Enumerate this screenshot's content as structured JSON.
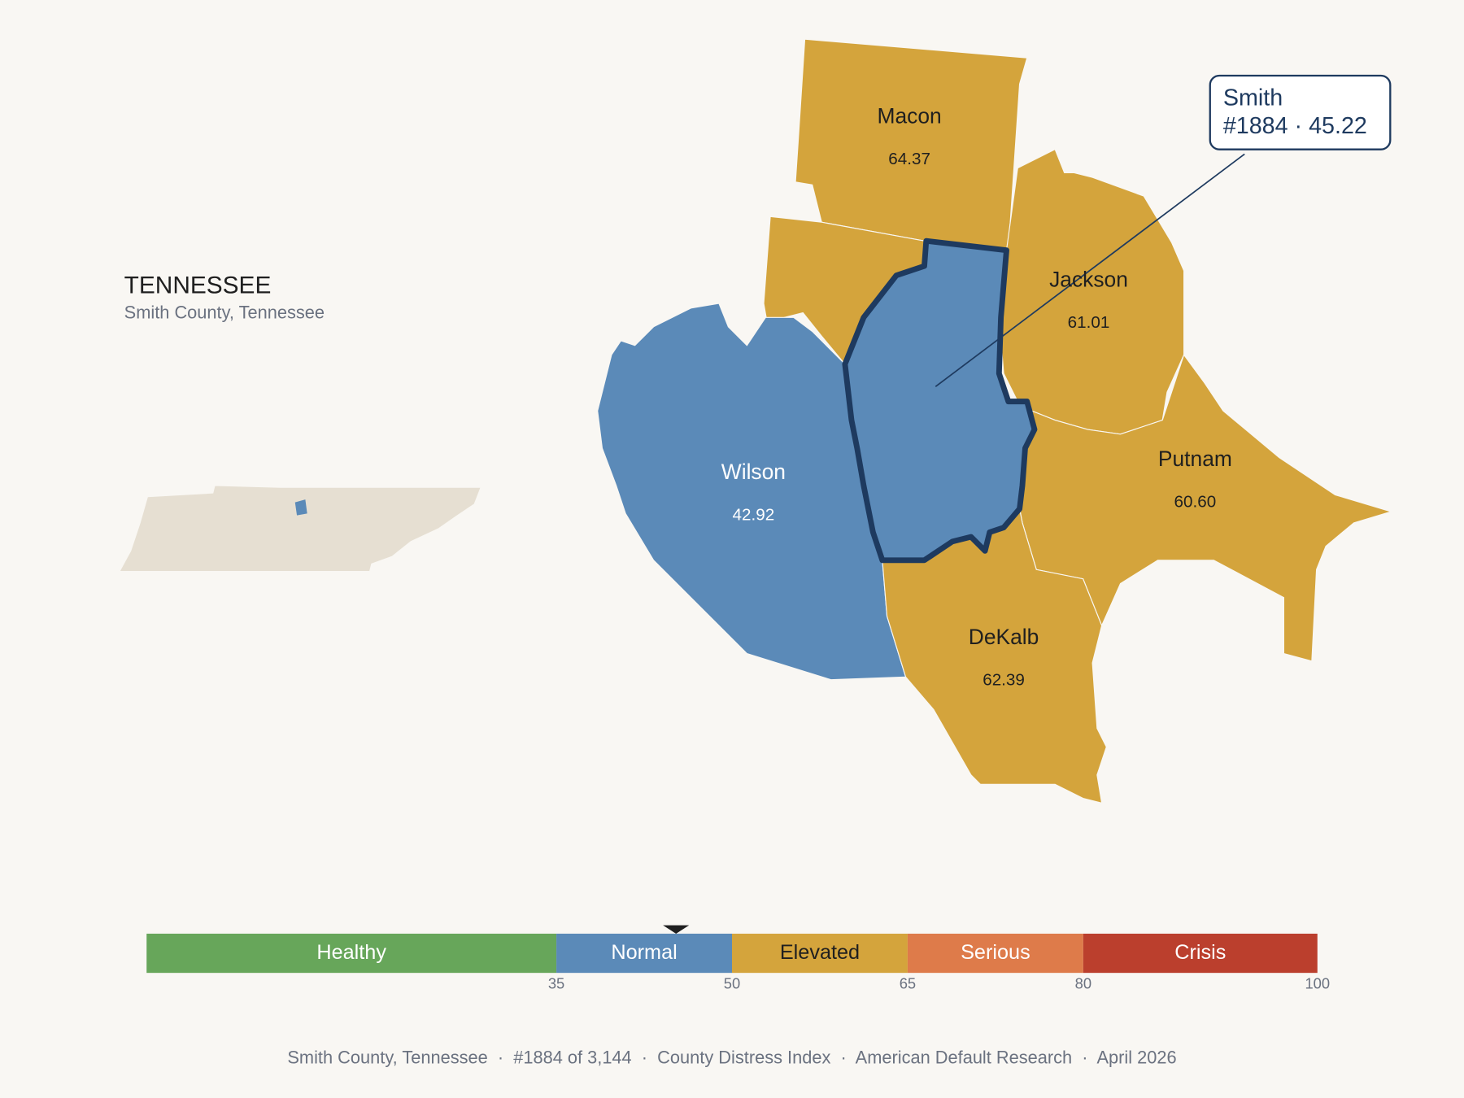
{
  "header": {
    "title": "TENNESSEE",
    "subtitle": "Smith County, Tennessee"
  },
  "counties": [
    {
      "name": "Macon",
      "value": "64.37",
      "color": "#d4a43c",
      "text": "#1f1f1f"
    },
    {
      "name": "Jackson",
      "value": "61.01",
      "color": "#d4a43c",
      "text": "#1f1f1f"
    },
    {
      "name": "Wilson",
      "value": "42.92",
      "color": "#5b8ab8",
      "text": "#ffffff"
    },
    {
      "name": "Putnam",
      "value": "60.60",
      "color": "#d4a43c",
      "text": "#1f1f1f"
    },
    {
      "name": "DeKalb",
      "value": "62.39",
      "color": "#d4a43c",
      "text": "#1f1f1f"
    }
  ],
  "callout": {
    "name": "Smith",
    "line": "#1884 · 45.22",
    "color": "#5b8ab8"
  },
  "legend": {
    "min": 0,
    "marker": 45.22,
    "bands": [
      {
        "label": "Healthy",
        "to": 35,
        "color": "#67a65a",
        "text": "#ffffff"
      },
      {
        "label": "Normal",
        "to": 50,
        "color": "#5b8ab8",
        "text": "#ffffff"
      },
      {
        "label": "Elevated",
        "to": 65,
        "color": "#d4a43c",
        "text": "#1f1f1f"
      },
      {
        "label": "Serious",
        "to": 80,
        "color": "#de7b4a",
        "text": "#ffffff"
      },
      {
        "label": "Crisis",
        "to": 100,
        "color": "#bb3f2d",
        "text": "#ffffff"
      }
    ]
  },
  "footer": "Smith County, Tennessee  ·  #1884 of 3,144  ·  County Distress Index  ·  American Default Research  ·  April 2026"
}
